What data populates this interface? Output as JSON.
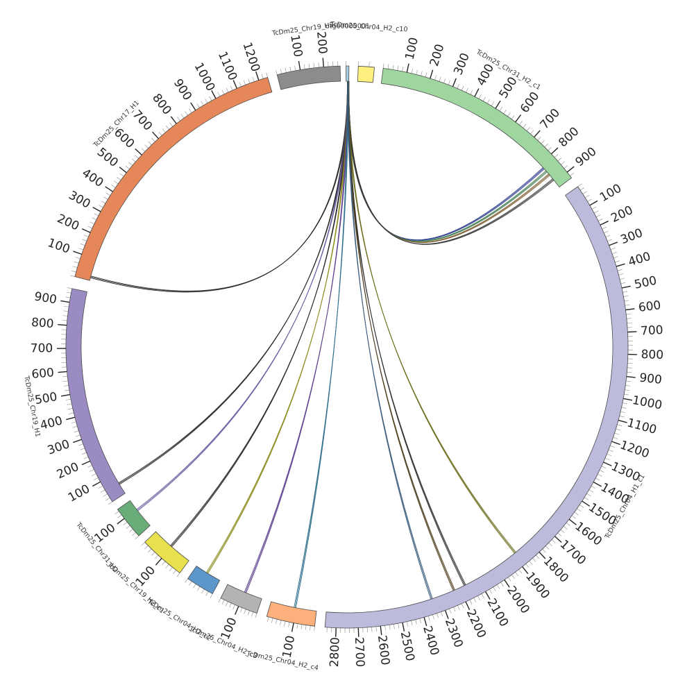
{
  "segments": [
    {
      "id": "h2c10",
      "label": "TcDm25_Chr04_H2_c10",
      "length": 30,
      "color": "#fff07f",
      "ticks": []
    },
    {
      "id": "h2c1",
      "label": "TcDm25_Chr31_H2_c1",
      "length": 930,
      "color": "#9fd6a0",
      "ticks": [
        100,
        200,
        300,
        400,
        500,
        600,
        700,
        800,
        900
      ]
    },
    {
      "id": "h1c1",
      "label": "TcDm25_Chr04_H1_c1",
      "length": 2850,
      "color": "#bdbbdc",
      "ticks": [
        100,
        200,
        300,
        400,
        500,
        600,
        700,
        800,
        900,
        1000,
        1100,
        1200,
        1300,
        1400,
        1500,
        1600,
        1700,
        1800,
        1900,
        2000,
        2100,
        2200,
        2300,
        2400,
        2500,
        2600,
        2700,
        2800
      ]
    },
    {
      "id": "h2c4",
      "label": "TcDm25_Chr04_H2_c4",
      "length": 230,
      "color": "#fdb07b",
      "ticks": [
        100
      ]
    },
    {
      "id": "c3",
      "label": "TcDm25_Chr04_H2_c3",
      "length": 200,
      "color": "#b3b3b3",
      "ticks": [
        100
      ]
    },
    {
      "id": "c2",
      "label": "TcDm25_Chr04_H2_c2",
      "length": 120,
      "color": "#5d96ca",
      "ticks": []
    },
    {
      "id": "c1y",
      "label": "TcDm25_Chr19_H2_c1",
      "length": 200,
      "color": "#e9e04d",
      "ticks": [
        100
      ]
    },
    {
      "id": "g31",
      "label": "TcDm25_Chr31_H2",
      "length": 150,
      "color": "#69ad78",
      "ticks": [
        100
      ]
    },
    {
      "id": "chr19h1",
      "label": "TcDm25_Chr19_H1",
      "length": 960,
      "color": "#9a8bc3",
      "ticks": [
        100,
        200,
        300,
        400,
        500,
        600,
        700,
        800,
        900
      ]
    },
    {
      "id": "chr17h1",
      "label": "TcDm25_Chr17_H1",
      "length": 1240,
      "color": "#e6875a",
      "ticks": [
        100,
        200,
        300,
        400,
        500,
        600,
        700,
        800,
        900,
        1000,
        1100,
        1200
      ]
    },
    {
      "id": "chr19h2",
      "label": "TcDm25_Chr19_H2",
      "length": 270,
      "color": "#8c8c8c",
      "ticks": [
        100,
        200
      ]
    },
    {
      "id": "tiny",
      "label": "utg00000001",
      "length": 15,
      "color": "#a6cde2",
      "ticks": []
    }
  ],
  "links": [
    {
      "from": "tiny",
      "to": "h2c1",
      "color": "#2b3a8c"
    },
    {
      "from": "tiny",
      "to": "h2c1",
      "color": "#3d7a4d"
    },
    {
      "from": "tiny",
      "to": "h2c1",
      "color": "#7a5a2a"
    },
    {
      "from": "tiny",
      "to": "h2c1",
      "color": "#333333"
    },
    {
      "from": "tiny",
      "to": "chr17h1",
      "color": "#222222"
    },
    {
      "from": "tiny",
      "to": "chr19h1",
      "color": "#222222"
    },
    {
      "from": "tiny",
      "to": "g31",
      "color": "#6a5aa0"
    },
    {
      "from": "tiny",
      "to": "c1y",
      "color": "#222222"
    },
    {
      "from": "tiny",
      "to": "c2",
      "color": "#8a8a1a"
    },
    {
      "from": "tiny",
      "to": "c3",
      "color": "#5a3d8c"
    },
    {
      "from": "tiny",
      "to": "h2c4",
      "color": "#2b6a8a"
    },
    {
      "from": "tiny",
      "to": "h1c1",
      "color": "#6a6a1a"
    },
    {
      "from": "tiny",
      "to": "h1c1",
      "color": "#2a2a2a"
    },
    {
      "from": "tiny",
      "to": "h1c1",
      "color": "#4a3a1a"
    },
    {
      "from": "tiny",
      "to": "h1c1",
      "color": "#3a5a7a"
    }
  ]
}
